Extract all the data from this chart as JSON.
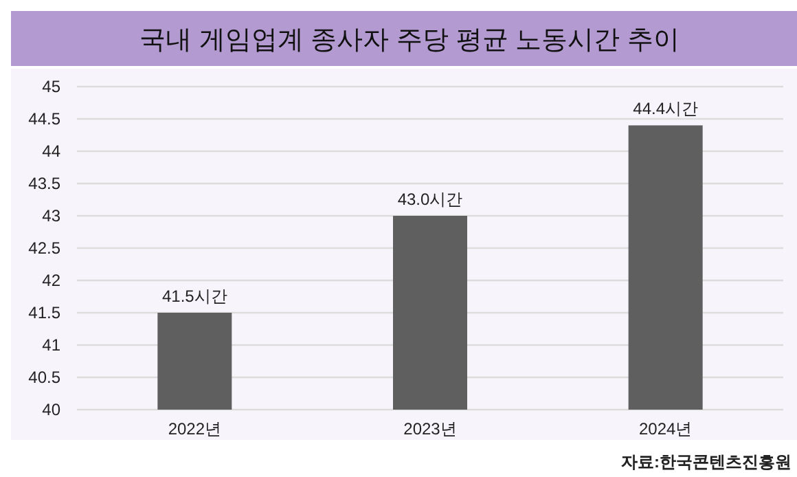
{
  "chart_data": {
    "type": "bar",
    "title": "국내 게임업계 종사자 주당 평균 노동시간 추이",
    "categories": [
      "2022년",
      "2023년",
      "2024년"
    ],
    "values": [
      41.5,
      43.0,
      44.4
    ],
    "value_labels": [
      "41.5시간",
      "43.0시간",
      "44.4시간"
    ],
    "color": "#5f5f5f",
    "ylim": [
      40,
      45
    ],
    "yticks": [
      40,
      40.5,
      41,
      41.5,
      42,
      42.5,
      43,
      43.5,
      44,
      44.5,
      45
    ],
    "grid": "y",
    "annotations": [
      "자료:한국콘텐츠진흥원"
    ]
  }
}
